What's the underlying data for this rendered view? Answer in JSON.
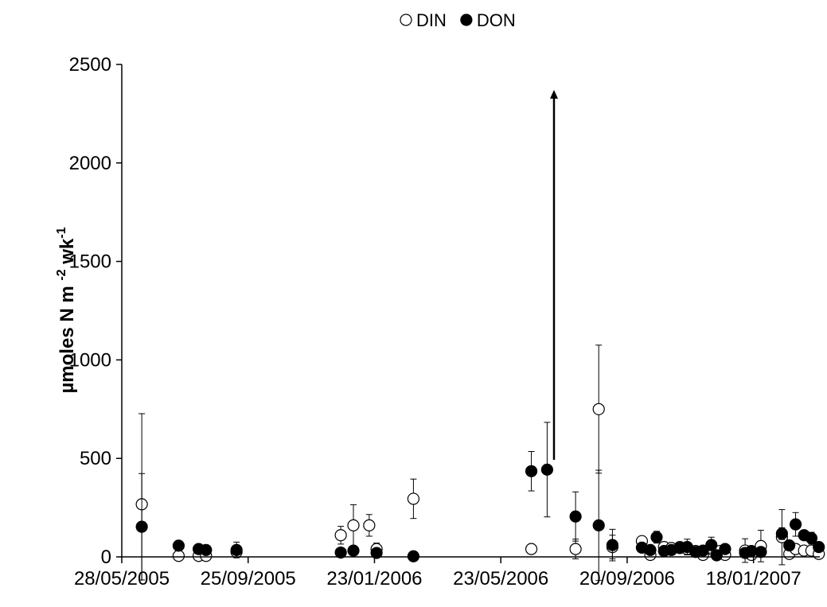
{
  "chart_data": {
    "type": "scatter",
    "ylabel": [
      "µmoles N m ",
      "-2",
      " wk",
      "-1"
    ],
    "xlim": [
      "2005-05-28",
      "2007-03-22"
    ],
    "xticks": [
      {
        "value": "2005-05-28",
        "label": "28/05/2005"
      },
      {
        "value": "2005-09-25",
        "label": "25/09/2005"
      },
      {
        "value": "2006-01-23",
        "label": "23/01/2006"
      },
      {
        "value": "2006-05-23",
        "label": "23/05/2006"
      },
      {
        "value": "2006-09-20",
        "label": "20/09/2006"
      },
      {
        "value": "2007-01-18",
        "label": "18/01/2007"
      }
    ],
    "ylim": [
      0,
      2500
    ],
    "yticks": [
      0,
      500,
      1000,
      1500,
      2000,
      2500
    ],
    "series": [
      {
        "name": "DIN",
        "color": "#ffffff",
        "x": [
          "2005-06-16",
          "2005-07-21",
          "2005-08-09",
          "2005-08-16",
          "2005-09-14",
          "2005-12-22",
          "2006-01-03",
          "2006-01-18",
          "2006-01-25",
          "2006-03-01",
          "2006-06-21",
          "2006-08-02",
          "2006-08-24",
          "2006-09-06",
          "2006-10-04",
          "2006-10-12",
          "2006-10-25",
          "2006-11-01",
          "2006-11-09",
          "2006-11-16",
          "2006-11-24",
          "2006-12-01",
          "2006-12-09",
          "2006-12-17",
          "2006-12-22",
          "2007-01-10",
          "2007-01-16",
          "2007-01-25",
          "2007-02-14",
          "2007-02-21",
          "2007-02-27",
          "2007-03-07",
          "2007-03-14",
          "2007-03-21"
        ],
        "values": [
          267,
          5,
          5,
          5,
          25,
          110,
          160,
          160,
          40,
          295,
          40,
          40,
          750,
          50,
          80,
          10,
          50,
          45,
          50,
          40,
          30,
          10,
          40,
          30,
          10,
          32,
          10,
          55,
          100,
          15,
          40,
          32,
          32,
          15
        ],
        "errors": [
          460,
          5,
          5,
          5,
          20,
          45,
          105,
          55,
          30,
          100,
          0,
          50,
          325,
          60,
          15,
          10,
          10,
          10,
          10,
          10,
          10,
          10,
          10,
          10,
          10,
          60,
          10,
          80,
          140,
          10,
          10,
          10,
          10,
          10
        ]
      },
      {
        "name": "DON",
        "color": "#000000",
        "x": [
          "2005-06-16",
          "2005-07-21",
          "2005-08-09",
          "2005-08-16",
          "2005-09-14",
          "2005-12-22",
          "2006-01-03",
          "2006-01-25",
          "2006-03-01",
          "2006-06-21",
          "2006-07-06",
          "2006-08-02",
          "2006-08-24",
          "2006-09-06",
          "2006-10-04",
          "2006-10-12",
          "2006-10-18",
          "2006-10-25",
          "2006-11-01",
          "2006-11-09",
          "2006-11-16",
          "2006-11-24",
          "2006-12-01",
          "2006-12-09",
          "2006-12-14",
          "2006-12-22",
          "2007-01-10",
          "2007-01-16",
          "2007-01-25",
          "2007-02-14",
          "2007-02-21",
          "2007-02-27",
          "2007-03-07",
          "2007-03-14",
          "2007-03-21"
        ],
        "values": [
          153,
          57,
          40,
          35,
          35,
          22,
          32,
          20,
          3,
          435,
          443,
          205,
          160,
          60,
          47,
          35,
          100,
          30,
          35,
          45,
          50,
          25,
          32,
          60,
          8,
          40,
          20,
          30,
          25,
          118,
          58,
          165,
          110,
          95,
          50
        ],
        "errors": [
          270,
          10,
          10,
          5,
          40,
          10,
          10,
          20,
          0,
          100,
          240,
          125,
          280,
          80,
          15,
          10,
          30,
          10,
          10,
          10,
          40,
          10,
          10,
          40,
          10,
          10,
          10,
          10,
          10,
          30,
          10,
          60,
          10,
          30,
          10
        ]
      }
    ]
  }
}
